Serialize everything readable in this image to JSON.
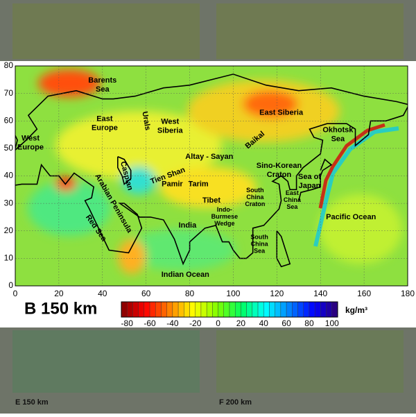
{
  "main": {
    "label": "B 150 km",
    "xlim": [
      0,
      180
    ],
    "ylim": [
      0,
      80
    ],
    "xticks": [
      0,
      20,
      40,
      60,
      80,
      100,
      120,
      140,
      160,
      180
    ],
    "yticks": [
      0,
      10,
      20,
      30,
      40,
      50,
      60,
      70,
      80
    ],
    "regions": [
      [
        "West",
        "Europe"
      ],
      [
        "Barents",
        "Sea"
      ],
      [
        "Urals"
      ],
      [
        "East",
        "Europe"
      ],
      [
        "West",
        "Siberia"
      ],
      [
        "East Siberia"
      ],
      [
        "Baikal"
      ],
      [
        "Altay - Sayan"
      ],
      [
        "Okhotsk",
        "Sea"
      ],
      [
        "Caspian"
      ],
      [
        "Tien Shan"
      ],
      [
        "Pamir"
      ],
      [
        "Tarim"
      ],
      [
        "Sino-Korean",
        "Craton"
      ],
      [
        "Sea of",
        "Japan"
      ],
      [
        "Tibet"
      ],
      [
        "South",
        "China",
        "Craton"
      ],
      [
        "East",
        "China",
        "Sea"
      ],
      [
        "Pacific Ocean"
      ],
      [
        "Arabian Peninsula"
      ],
      [
        "Red Sea"
      ],
      [
        "India"
      ],
      [
        "Indo-",
        "Burmese",
        "Wedge"
      ],
      [
        "South",
        "China",
        "Sea"
      ],
      [
        "Indian Ocean"
      ]
    ],
    "colorbar": {
      "clim": [
        -85,
        105
      ],
      "ticks": [
        -80,
        -60,
        -40,
        -20,
        0,
        20,
        40,
        60,
        80,
        100
      ],
      "unit": "kg/m³",
      "colors": [
        "#800000",
        "#ff0000",
        "#ff8000",
        "#ffff00",
        "#80ff00",
        "#00ff60",
        "#00ffff",
        "#0080ff",
        "#0000ff",
        "#300070"
      ]
    }
  },
  "faded": [
    {
      "label": "E 150 km"
    },
    {
      "label": "F 200 km"
    }
  ]
}
